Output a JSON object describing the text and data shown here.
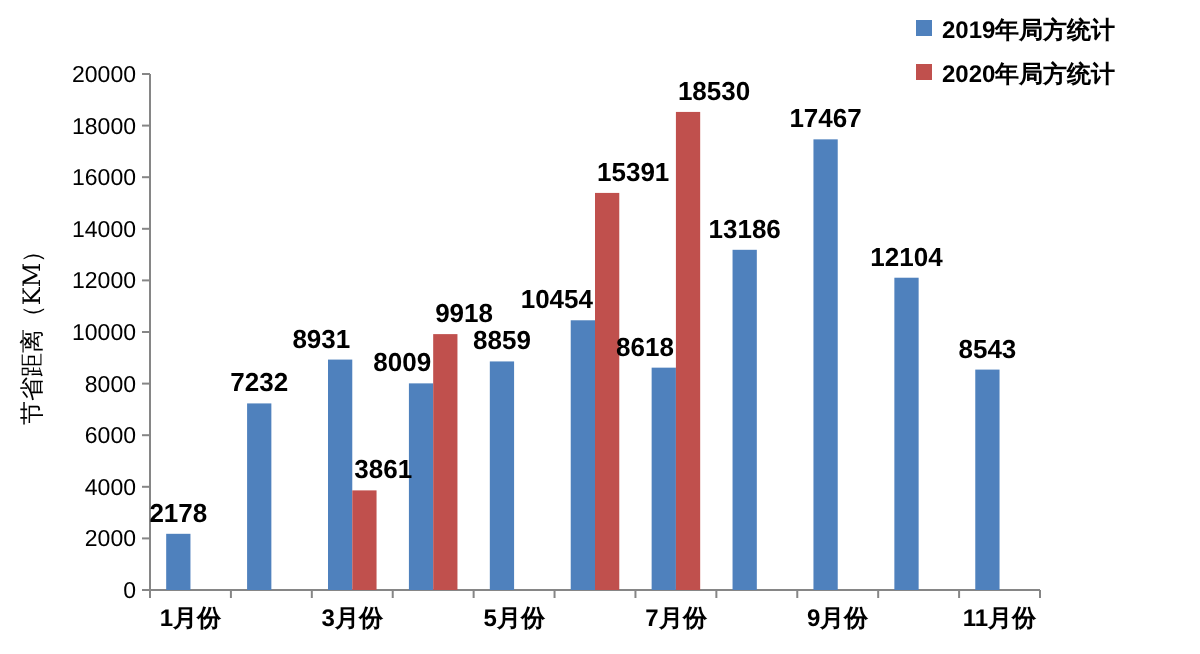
{
  "chart_data": {
    "type": "bar",
    "ylabel": "节省距离（KM）",
    "categories": [
      "1月份",
      null,
      "3月份",
      null,
      "5月份",
      null,
      "7月份",
      null,
      "9月份",
      null,
      "11月份"
    ],
    "series": [
      {
        "name": "2019年局方统计",
        "color": "#4f81bd",
        "values": [
          2178,
          7232,
          8931,
          8009,
          8859,
          10454,
          8618,
          13186,
          17467,
          12104,
          8543
        ]
      },
      {
        "name": "2020年局方统计",
        "color": "#c0504d",
        "values": [
          null,
          null,
          3861,
          9918,
          null,
          15391,
          18530,
          null,
          null,
          null,
          null
        ]
      }
    ],
    "ylim": [
      0,
      20000
    ],
    "yticks": [
      0,
      2000,
      4000,
      6000,
      8000,
      10000,
      12000,
      14000,
      16000,
      18000,
      20000
    ],
    "data_labels": true,
    "legend": "top right",
    "grid": false
  }
}
